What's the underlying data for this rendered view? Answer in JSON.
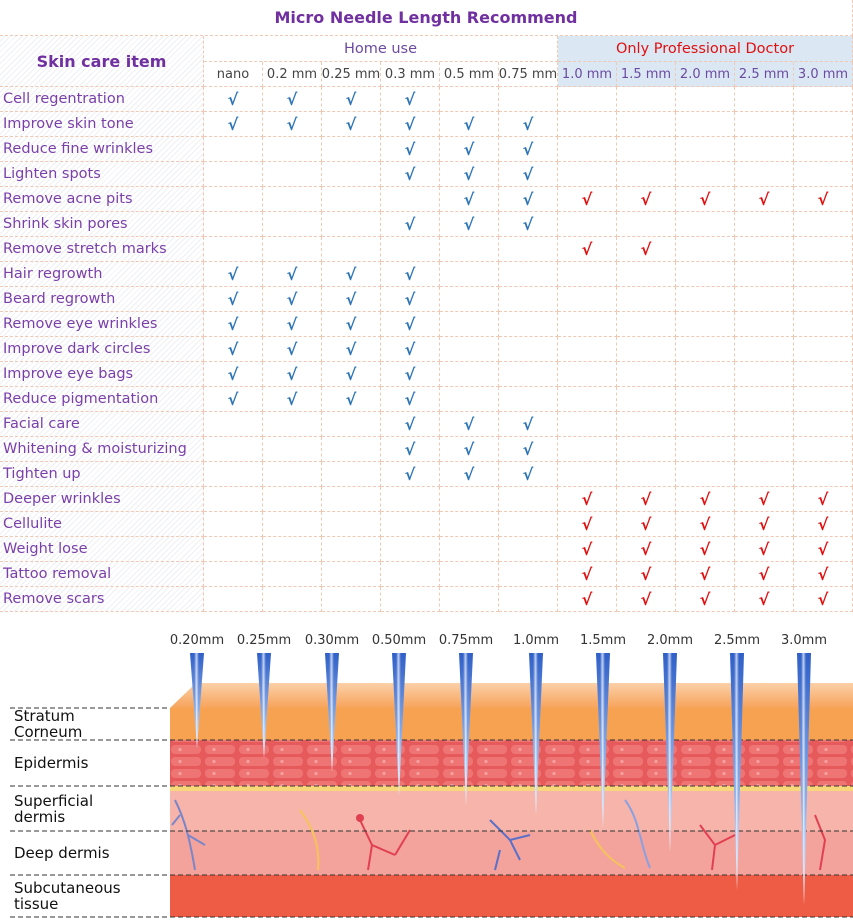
{
  "title": "Micro Needle Length Recommend",
  "table": {
    "item_header": "Skin care item",
    "groups": [
      {
        "label": "Home use",
        "columns": [
          "nano",
          "0.2 mm",
          "0.25 mm",
          "0.3 mm",
          "0.5 mm",
          "0.75 mm"
        ]
      },
      {
        "label": "Only Professional Doctor",
        "columns": [
          "1.0 mm",
          "1.5 mm",
          "2.0 mm",
          "2.5 mm",
          "3.0 mm"
        ]
      }
    ],
    "rows": [
      {
        "item": "Cell regentration",
        "cells": [
          "√",
          "√",
          "√",
          "√",
          null,
          null,
          null,
          null,
          null,
          null,
          null
        ]
      },
      {
        "item": "Improve skin tone",
        "cells": [
          "√",
          "√",
          "√",
          "√",
          "√",
          "√",
          null,
          null,
          null,
          null,
          null
        ]
      },
      {
        "item": "Reduce fine wrinkles",
        "cells": [
          null,
          null,
          null,
          "√",
          "√",
          "√",
          null,
          null,
          null,
          null,
          null
        ]
      },
      {
        "item": "Lighten spots",
        "cells": [
          null,
          null,
          null,
          "√",
          "√",
          "√",
          null,
          null,
          null,
          null,
          null
        ]
      },
      {
        "item": "Remove acne pits",
        "cells": [
          null,
          null,
          null,
          null,
          "√",
          "√",
          "√",
          "√",
          "√",
          "√",
          "√"
        ]
      },
      {
        "item": "Shrink skin pores",
        "cells": [
          null,
          null,
          null,
          "√",
          "√",
          "√",
          null,
          null,
          null,
          null,
          null
        ]
      },
      {
        "item": "Remove stretch marks",
        "cells": [
          null,
          null,
          null,
          null,
          null,
          null,
          "√",
          "√",
          null,
          null,
          null
        ]
      },
      {
        "item": "Hair regrowth",
        "cells": [
          "√",
          "√",
          "√",
          "√",
          null,
          null,
          null,
          null,
          null,
          null,
          null
        ]
      },
      {
        "item": "Beard regrowth",
        "cells": [
          "√",
          "√",
          "√",
          "√",
          null,
          null,
          null,
          null,
          null,
          null,
          null
        ]
      },
      {
        "item": "Remove eye wrinkles",
        "cells": [
          "√",
          "√",
          "√",
          "√",
          null,
          null,
          null,
          null,
          null,
          null,
          null
        ]
      },
      {
        "item": "Improve dark circles",
        "cells": [
          "√",
          "√",
          "√",
          "√",
          null,
          null,
          null,
          null,
          null,
          null,
          null
        ]
      },
      {
        "item": "Improve eye bags",
        "cells": [
          "√",
          "√",
          "√",
          "√",
          null,
          null,
          null,
          null,
          null,
          null,
          null
        ]
      },
      {
        "item": "Reduce pigmentation",
        "cells": [
          "√",
          "√",
          "√",
          "√",
          null,
          null,
          null,
          null,
          null,
          null,
          null
        ]
      },
      {
        "item": "Facial care",
        "cells": [
          null,
          null,
          null,
          "√",
          "√",
          "√",
          null,
          null,
          null,
          null,
          null
        ]
      },
      {
        "item": "Whitening & moisturizing",
        "cells": [
          null,
          null,
          null,
          "√",
          "√",
          "√",
          null,
          null,
          null,
          null,
          null
        ]
      },
      {
        "item": "Tighten up",
        "cells": [
          null,
          null,
          null,
          "√",
          "√",
          "√",
          null,
          null,
          null,
          null,
          null
        ]
      },
      {
        "item": "Deeper wrinkles",
        "cells": [
          null,
          null,
          null,
          null,
          null,
          null,
          "√",
          "√",
          "√",
          "√",
          "√"
        ]
      },
      {
        "item": "Cellulite",
        "cells": [
          null,
          null,
          null,
          null,
          null,
          null,
          "√",
          "√",
          "√",
          "√",
          "√"
        ]
      },
      {
        "item": "Weight lose",
        "cells": [
          null,
          null,
          null,
          null,
          null,
          null,
          "√",
          "√",
          "√",
          "√",
          "√"
        ]
      },
      {
        "item": "Tattoo removal",
        "cells": [
          null,
          null,
          null,
          null,
          null,
          null,
          "√",
          "√",
          "√",
          "√",
          "√"
        ]
      },
      {
        "item": "Remove scars",
        "cells": [
          null,
          null,
          null,
          null,
          null,
          null,
          "√",
          "√",
          "√",
          "√",
          "√"
        ]
      }
    ]
  },
  "diagram": {
    "needles": [
      "0.20mm",
      "0.25mm",
      "0.30mm",
      "0.50mm",
      "0.75mm",
      "1.0mm",
      "1.5mm",
      "2.0mm",
      "2.5mm",
      "3.0mm"
    ],
    "layers": [
      "Stratum Corneum",
      "Epidermis",
      "Superficial dermis",
      "Deep dermis",
      "Subcutaneous tissue"
    ]
  }
}
